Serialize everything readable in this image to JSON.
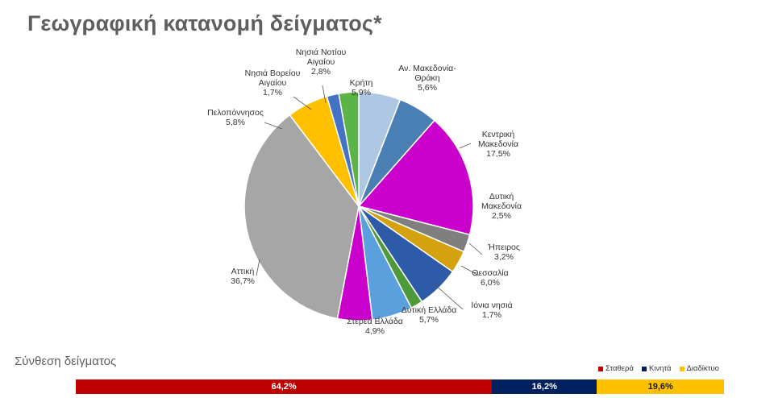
{
  "page": {
    "title": "Γεωγραφική κατανομή δείγματος*",
    "section_title": "Σύνθεση δείγματος"
  },
  "chart_data": [
    {
      "type": "pie",
      "title": "",
      "start_angle_deg": 90,
      "direction": "clockwise",
      "slices": [
        {
          "label": "Κρήτη",
          "value": 5.9,
          "value_label": "5,9%",
          "color": "#aec7e3"
        },
        {
          "label": "Αν. Μακεδονία-Θράκη",
          "label_lines": [
            "Αν. Μακεδονία-",
            "Θράκη"
          ],
          "value": 5.6,
          "value_label": "5,6%",
          "color": "#4a7fb3"
        },
        {
          "label": "Κεντρική Μακεδονία",
          "label_lines": [
            "Κεντρική",
            "Μακεδονία"
          ],
          "value": 17.5,
          "value_label": "17,5%",
          "color": "#cc00cc"
        },
        {
          "label": "Δυτική Μακεδονία",
          "label_lines": [
            "Δυτική",
            "Μακεδονία"
          ],
          "value": 2.5,
          "value_label": "2,5%",
          "color": "#7f7f7f"
        },
        {
          "label": "Ήπειρος",
          "value": 3.2,
          "value_label": "3,2%",
          "color": "#d4a20f"
        },
        {
          "label": "Θεσσαλία",
          "value": 6.0,
          "value_label": "6,0%",
          "color": "#2e5ba8"
        },
        {
          "label": "Ιόνια νησιά",
          "value": 1.7,
          "value_label": "1,7%",
          "color": "#4e9a3a"
        },
        {
          "label": "Δυτική Ελλάδα",
          "value": 5.7,
          "value_label": "5,7%",
          "color": "#5aa0dc"
        },
        {
          "label": "Στερεά Ελλάδα",
          "value": 4.9,
          "value_label": "4,9%",
          "color": "#cc00cc"
        },
        {
          "label": "Αττική",
          "value": 36.7,
          "value_label": "36,7%",
          "color": "#a6a6a6"
        },
        {
          "label": "Πελοπόννησος",
          "value": 5.8,
          "value_label": "5,8%",
          "color": "#ffc000"
        },
        {
          "label": "Νησιά Βορείου Αιγαίου",
          "label_lines": [
            "Νησιά Βορείου",
            "Αιγαίου"
          ],
          "value": 1.7,
          "value_label": "1,7%",
          "color": "#4472c4"
        },
        {
          "label": "Νησιά Νοτίου Αιγαίου",
          "label_lines": [
            "Νησιά Νοτίου",
            "Αιγαίου"
          ],
          "value": 2.8,
          "value_label": "2,8%",
          "color": "#5cb347"
        }
      ]
    },
    {
      "type": "bar",
      "orientation": "horizontal",
      "stacked": true,
      "legend_position": "top-right",
      "series": [
        {
          "name": "Σταθερά",
          "value": 64.2,
          "value_label": "64,2%",
          "color": "#c00000"
        },
        {
          "name": "Κινητά",
          "value": 16.2,
          "value_label": "16,2%",
          "color": "#002060"
        },
        {
          "name": "Διαδίκτυο",
          "value": 19.6,
          "value_label": "19,6%",
          "color": "#ffc000"
        }
      ]
    }
  ]
}
